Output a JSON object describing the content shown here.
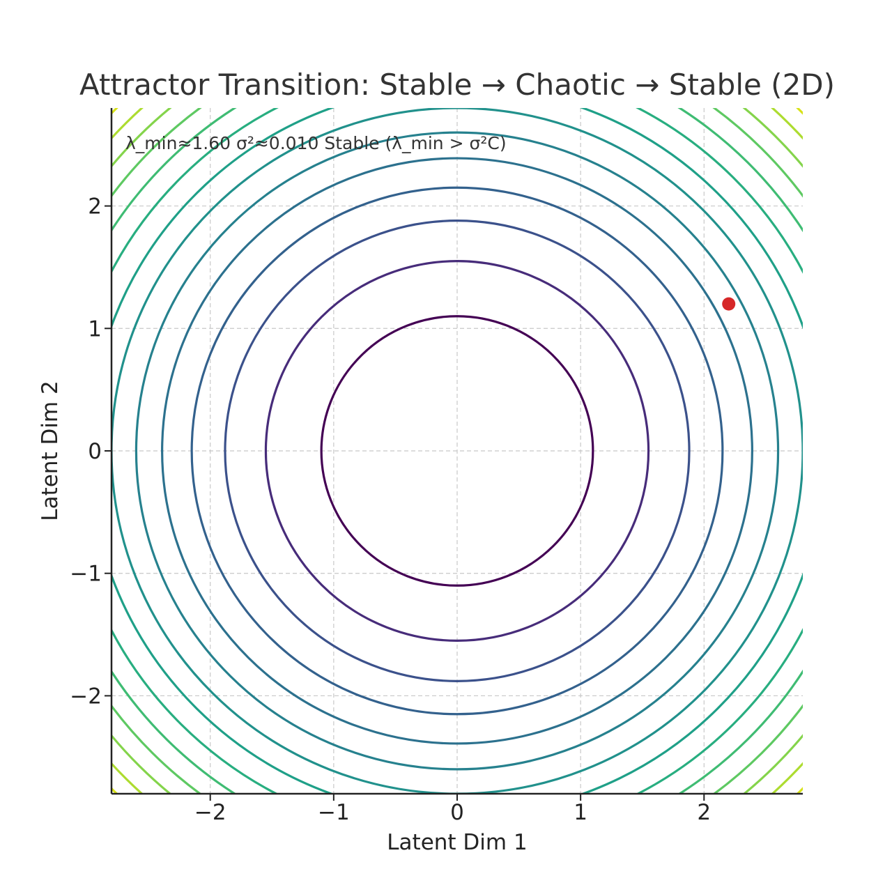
{
  "chart_data": {
    "type": "contour",
    "title": "Attractor Transition: Stable → Chaotic → Stable (2D)",
    "xlabel": "Latent Dim 1",
    "ylabel": "Latent Dim 2",
    "xlim": [
      -2.8,
      2.8
    ],
    "ylim": [
      -2.8,
      2.8
    ],
    "xticks": [
      -2,
      -1,
      0,
      1,
      2
    ],
    "yticks": [
      -2,
      -1,
      0,
      1,
      2
    ],
    "xtick_labels": [
      "−2",
      "−1",
      "0",
      "1",
      "2"
    ],
    "ytick_labels": [
      "−2",
      "−1",
      "0",
      "1",
      "2"
    ],
    "grid": true,
    "colormap": "viridis",
    "contour_radii": [
      1.1,
      1.55,
      1.88,
      2.15,
      2.39,
      2.6,
      2.8,
      2.98,
      3.16,
      3.33,
      3.49,
      3.64,
      3.79,
      3.93
    ],
    "contour_colors": [
      "#440154",
      "#472c7a",
      "#3b518b",
      "#33618d",
      "#2c718e",
      "#26818e",
      "#21918c",
      "#1fa088",
      "#28ae80",
      "#3fbc73",
      "#5ec962",
      "#84d44b",
      "#addc30",
      "#d8e219"
    ],
    "point": {
      "x": 2.2,
      "y": 1.2,
      "color": "#d62728"
    },
    "annotation": "λ_min≈1.60   σ²≈0.010   Stable (λ_min > σ²C)"
  }
}
